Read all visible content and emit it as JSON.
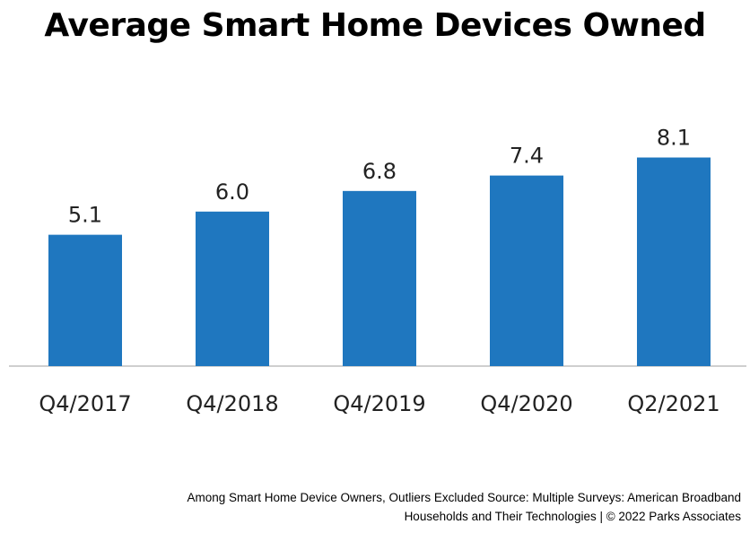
{
  "chart_data": {
    "type": "bar",
    "title": "Average Smart Home Devices Owned",
    "categories": [
      "Q4/2017",
      "Q4/2018",
      "Q4/2019",
      "Q4/2020",
      "Q2/2021"
    ],
    "values": [
      5.1,
      6.0,
      6.8,
      7.4,
      8.1
    ],
    "value_labels": [
      "5.1",
      "6.0",
      "6.8",
      "7.4",
      "8.1"
    ],
    "xlabel": "",
    "ylabel": "",
    "ylim": [
      0,
      11
    ],
    "grid": false,
    "legend": "none",
    "bar_color": "#1F77BF"
  },
  "footnote": {
    "line1": "Among Smart Home Device Owners, Outliers Excluded  Source: Multiple Surveys: American Broadband",
    "line2": "Households and Their Technologies | © 2022 Parks Associates"
  }
}
